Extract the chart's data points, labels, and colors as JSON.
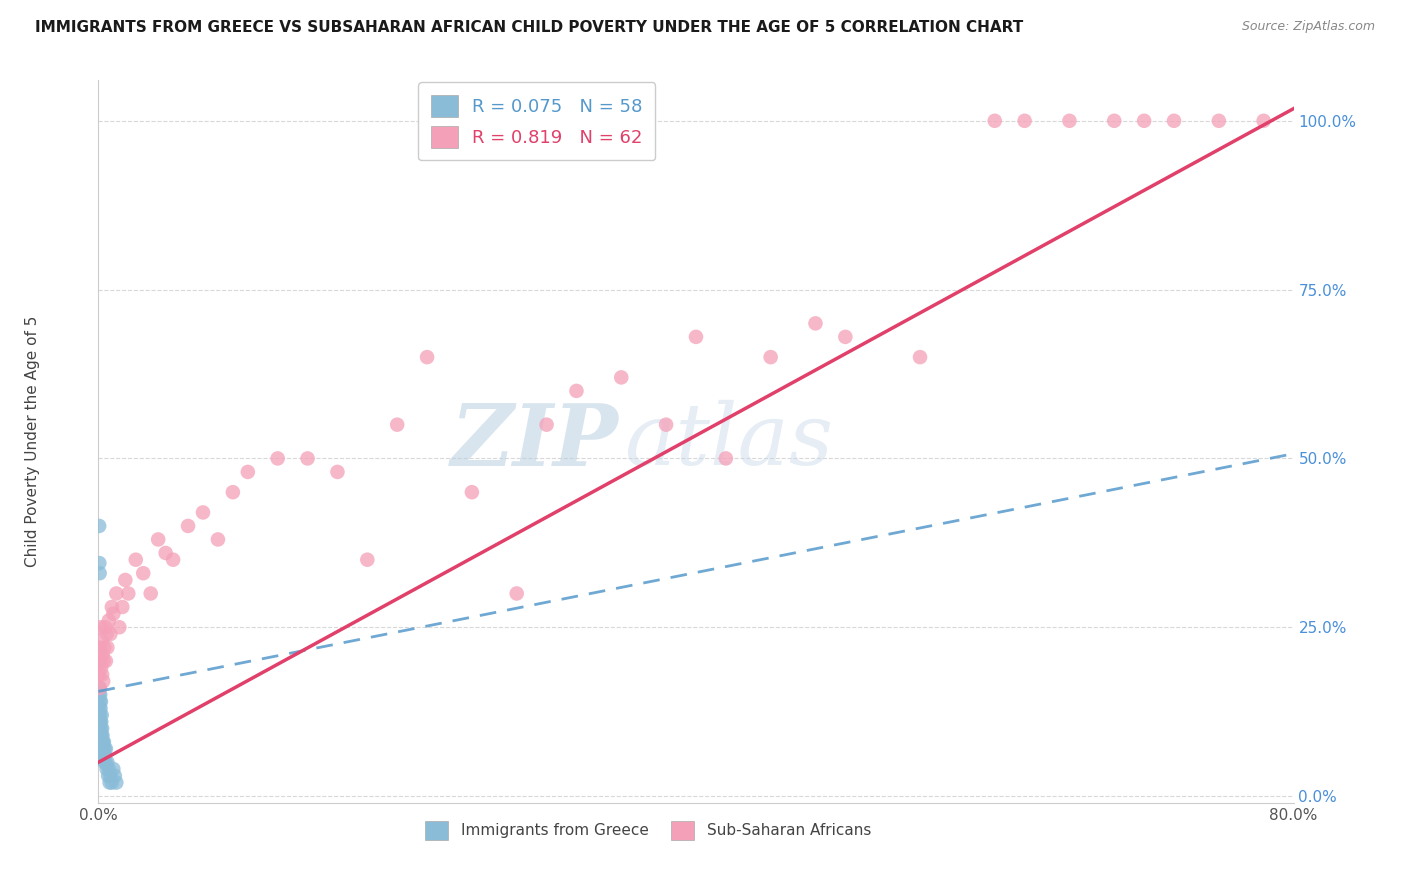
{
  "title": "IMMIGRANTS FROM GREECE VS SUBSAHARAN AFRICAN CHILD POVERTY UNDER THE AGE OF 5 CORRELATION CHART",
  "source": "Source: ZipAtlas.com",
  "ylabel": "Child Poverty Under the Age of 5",
  "legend_label_greece": "Immigrants from Greece",
  "legend_label_subsaharan": "Sub-Saharan Africans",
  "r_greece": 0.075,
  "n_greece": 58,
  "r_subsaharan": 0.819,
  "n_subsaharan": 62,
  "color_greece": "#8abcd8",
  "color_subsaharan": "#f4a0b8",
  "trendline_greece_color": "#5599cc",
  "trendline_subsaharan_color": "#e0406a",
  "xlim": [
    0.0,
    0.8
  ],
  "ylim": [
    -0.01,
    1.06
  ],
  "yticks": [
    0.0,
    0.25,
    0.5,
    0.75,
    1.0
  ],
  "ytick_labels": [
    "0.0%",
    "25.0%",
    "50.0%",
    "75.0%",
    "100.0%"
  ],
  "xtick_labels": [
    "0.0%",
    "",
    "",
    "",
    "80.0%"
  ],
  "watermark_zip": "ZIP",
  "watermark_atlas": "atlas",
  "background_color": "#ffffff",
  "grid_color": "#d8d8d8",
  "title_fontsize": 11,
  "source_fontsize": 9,
  "legend_fontsize": 13,
  "tick_fontsize": 11,
  "ylabel_fontsize": 11,
  "greece_x": [
    0.0003,
    0.0004,
    0.0005,
    0.0005,
    0.0006,
    0.0007,
    0.0007,
    0.0008,
    0.0008,
    0.0009,
    0.001,
    0.001,
    0.0011,
    0.0011,
    0.0012,
    0.0012,
    0.0013,
    0.0013,
    0.0014,
    0.0015,
    0.0015,
    0.0016,
    0.0017,
    0.0017,
    0.0018,
    0.0019,
    0.002,
    0.0021,
    0.0022,
    0.0023,
    0.0024,
    0.0025,
    0.0026,
    0.0027,
    0.0028,
    0.003,
    0.0031,
    0.0033,
    0.0035,
    0.0037,
    0.004,
    0.0042,
    0.0045,
    0.0048,
    0.005,
    0.0055,
    0.006,
    0.0065,
    0.007,
    0.0075,
    0.008,
    0.009,
    0.01,
    0.011,
    0.012,
    0.0005,
    0.0006,
    0.0008
  ],
  "greece_y": [
    0.1,
    0.08,
    0.12,
    0.15,
    0.07,
    0.09,
    0.13,
    0.11,
    0.16,
    0.08,
    0.1,
    0.14,
    0.07,
    0.12,
    0.09,
    0.15,
    0.08,
    0.11,
    0.13,
    0.07,
    0.09,
    0.06,
    0.1,
    0.14,
    0.08,
    0.11,
    0.07,
    0.09,
    0.12,
    0.08,
    0.06,
    0.1,
    0.07,
    0.09,
    0.08,
    0.06,
    0.08,
    0.07,
    0.06,
    0.08,
    0.05,
    0.07,
    0.06,
    0.05,
    0.07,
    0.04,
    0.05,
    0.03,
    0.04,
    0.02,
    0.03,
    0.02,
    0.04,
    0.03,
    0.02,
    0.4,
    0.345,
    0.33
  ],
  "subsaharan_x": [
    0.0005,
    0.0008,
    0.001,
    0.0012,
    0.0015,
    0.0018,
    0.002,
    0.0025,
    0.0028,
    0.0032,
    0.0035,
    0.004,
    0.0045,
    0.005,
    0.0055,
    0.006,
    0.007,
    0.008,
    0.009,
    0.01,
    0.012,
    0.014,
    0.016,
    0.018,
    0.02,
    0.025,
    0.03,
    0.035,
    0.04,
    0.045,
    0.05,
    0.06,
    0.07,
    0.08,
    0.09,
    0.1,
    0.12,
    0.14,
    0.16,
    0.18,
    0.2,
    0.22,
    0.25,
    0.28,
    0.3,
    0.32,
    0.35,
    0.38,
    0.4,
    0.42,
    0.45,
    0.48,
    0.5,
    0.55,
    0.6,
    0.62,
    0.65,
    0.68,
    0.7,
    0.72,
    0.75,
    0.78
  ],
  "subsaharan_y": [
    0.18,
    0.22,
    0.16,
    0.2,
    0.25,
    0.19,
    0.23,
    0.18,
    0.21,
    0.17,
    0.2,
    0.22,
    0.25,
    0.2,
    0.24,
    0.22,
    0.26,
    0.24,
    0.28,
    0.27,
    0.3,
    0.25,
    0.28,
    0.32,
    0.3,
    0.35,
    0.33,
    0.3,
    0.38,
    0.36,
    0.35,
    0.4,
    0.42,
    0.38,
    0.45,
    0.48,
    0.5,
    0.5,
    0.48,
    0.35,
    0.55,
    0.65,
    0.45,
    0.3,
    0.55,
    0.6,
    0.62,
    0.55,
    0.68,
    0.5,
    0.65,
    0.7,
    0.68,
    0.65,
    1.0,
    1.0,
    1.0,
    1.0,
    1.0,
    1.0,
    1.0,
    1.0
  ]
}
